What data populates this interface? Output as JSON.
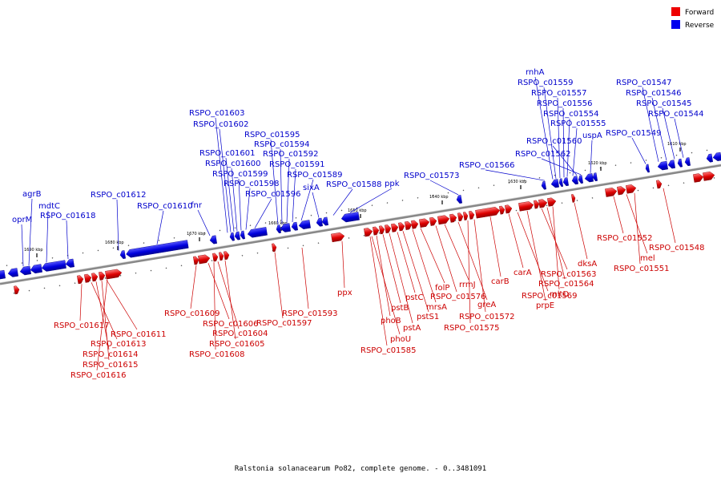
{
  "caption": "Ralstonia solanacearum Po82, complete genome. - 0..3481091",
  "legend": [
    {
      "label": "Forward",
      "color": "#ee0000"
    },
    {
      "label": "Reverse",
      "color": "#0000ee"
    }
  ],
  "ticks": [
    "1690 kbp",
    "1680 kbp",
    "1670 kbp",
    "1660 kbp",
    "1650 kbp",
    "1640 kbp",
    "1630 kbp",
    "1620 kbp",
    "1610 kbp"
  ],
  "reverse_labels": [
    "oprM",
    "agrB",
    "mdtC",
    "RSPO_c01618",
    "RSPO_c01612",
    "RSPO_c01610",
    "fnr",
    "RSPO_c01603",
    "RSPO_c01602",
    "RSPO_c01601",
    "RSPO_c01600",
    "RSPO_c01599",
    "RSPO_c01598",
    "RSPO_c01596",
    "RSPO_c01595",
    "RSPO_c01594",
    "RSPO_c01592",
    "RSPO_c01591",
    "RSPO_c01589",
    "sixA",
    "RSPO_c01588",
    "ppk",
    "RSPO_c01573",
    "RSPO_c01566",
    "rnhA",
    "RSPO_c01559",
    "RSPO_c01557",
    "RSPO_c01556",
    "RSPO_c01554",
    "RSPO_c01555",
    "RSPO_c01560",
    "RSPO_c01562",
    "uspA",
    "RSPO_c01549",
    "RSPO_c01547",
    "RSPO_c01546",
    "RSPO_c01545",
    "RSPO_c01544"
  ],
  "forward_labels": [
    "RSPO_c01617",
    "RSPO_c01611",
    "RSPO_c01613",
    "RSPO_c01614",
    "RSPO_c01615",
    "RSPO_c01616",
    "RSPO_c01609",
    "RSPO_c01606",
    "RSPO_c01604",
    "RSPO_c01605",
    "RSPO_c01608",
    "RSPO_c01597",
    "RSPO_c01593",
    "ppx",
    "phoU",
    "phoB",
    "pstB",
    "pstA",
    "pstC",
    "pstS1",
    "mrsA",
    "folP",
    "RSPO_c01576",
    "rrmJ",
    "greA",
    "RSPO_c01575",
    "RSPO_c01572",
    "carB",
    "carA",
    "RSPO_c01569",
    "prpE",
    "RSPO_c01563",
    "RSPO_c01564",
    "mltD",
    "dksA",
    "RSPO_c01552",
    "mel",
    "RSPO_c01551",
    "RSPO_c01548",
    "RSPO_c01585"
  ]
}
